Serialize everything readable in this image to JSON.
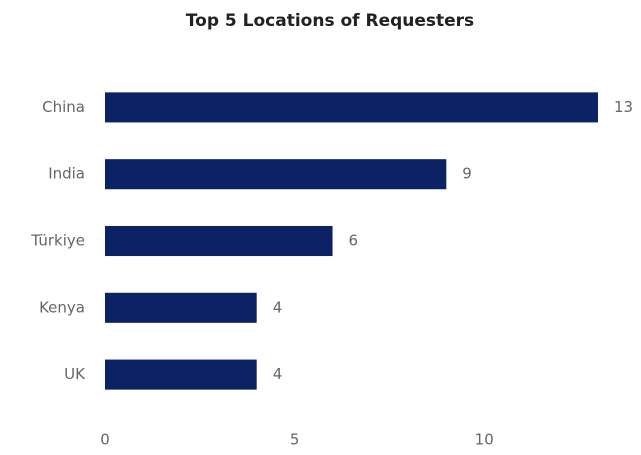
{
  "chart_data": {
    "type": "hbar",
    "title": "Top 5 Locations of Requesters",
    "categories": [
      "China",
      "India",
      "Türkiye",
      "Kenya",
      "UK"
    ],
    "values": [
      13,
      9,
      6,
      4,
      4
    ],
    "color": "#0b2265",
    "xlim": [
      0,
      13
    ],
    "xticks": [
      0,
      5,
      10
    ],
    "grid": false
  }
}
